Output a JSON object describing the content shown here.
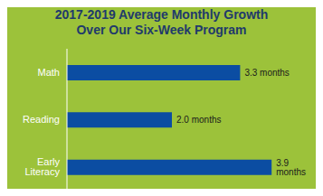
{
  "chart_data": {
    "type": "bar",
    "title": "2017-2019 Average Monthly Growth Over Our Six-Week Program",
    "orientation": "horizontal",
    "categories": [
      "Math",
      "Reading",
      "Early Literacy"
    ],
    "values": [
      3.3,
      2.0,
      3.9
    ],
    "value_labels": [
      "3.3 months",
      "2.0 months",
      "3.9 months"
    ],
    "color": "#0B4DA2",
    "xlim": [
      0,
      4.5
    ],
    "grid": false,
    "data_labels": true,
    "tick_labels": "y"
  }
}
